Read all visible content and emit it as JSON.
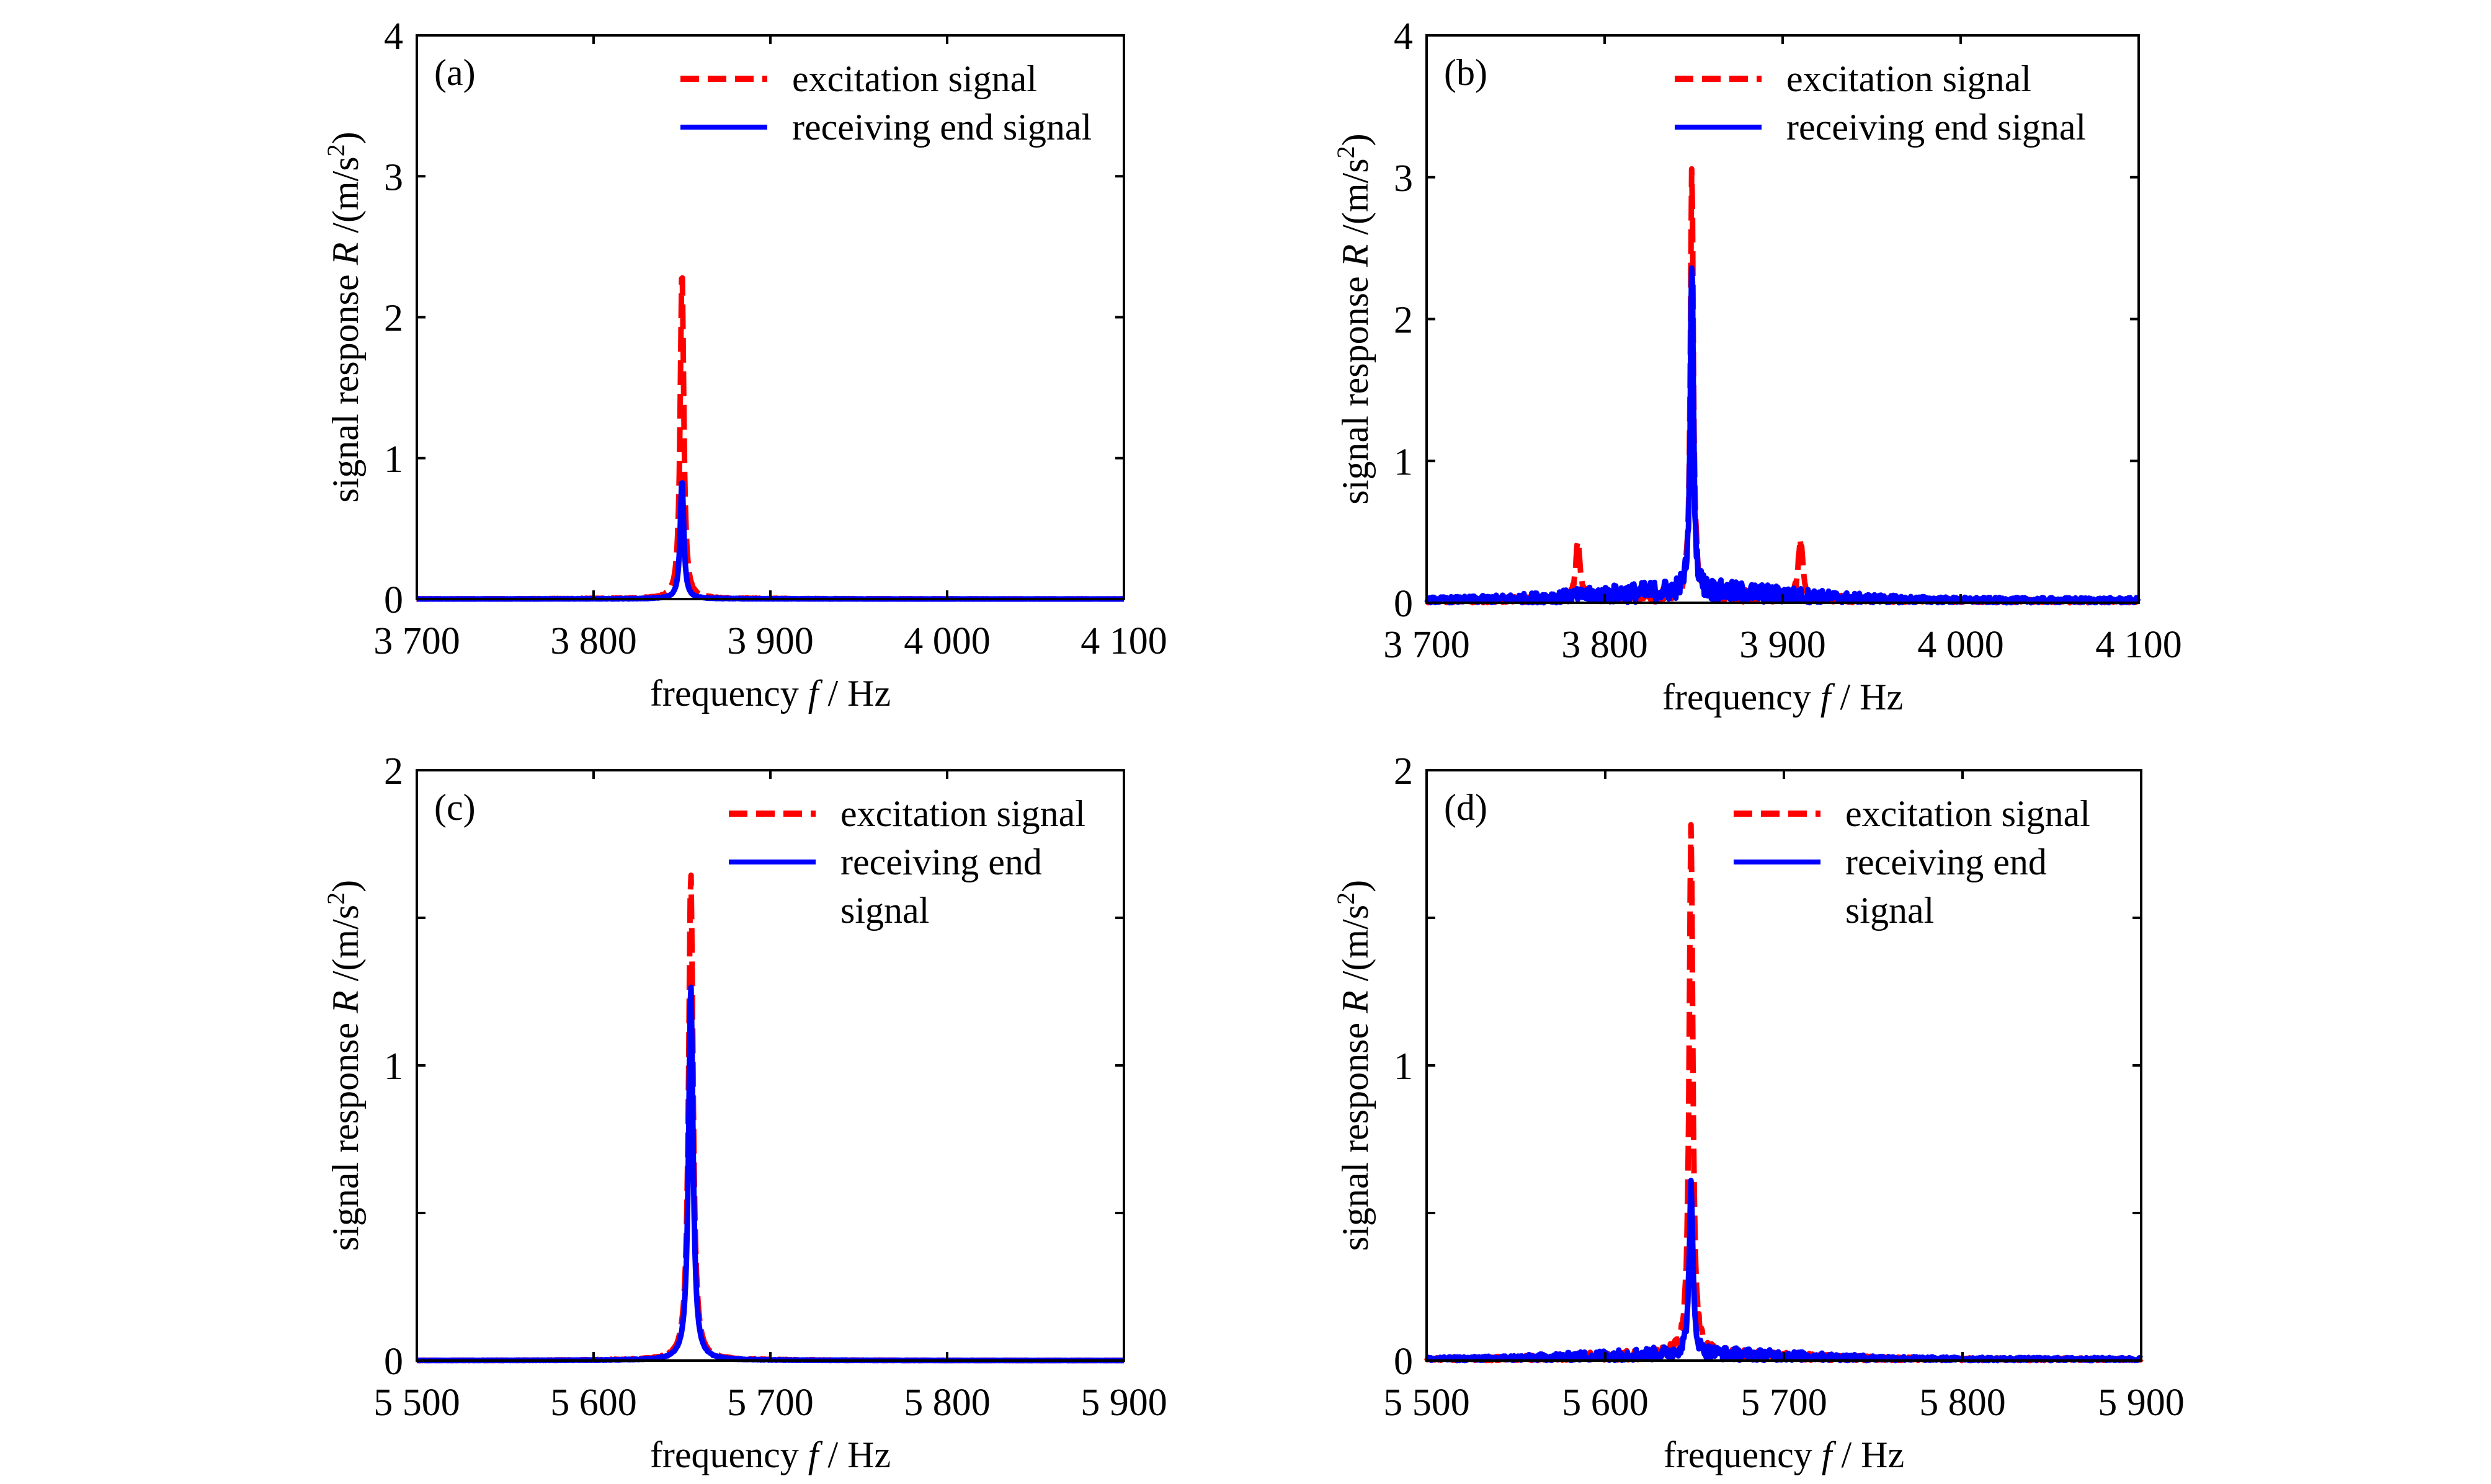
{
  "chart_data": [
    {
      "type": "line",
      "panel": "(a)",
      "xlabel_prefix": "frequency ",
      "xlabel_var": "f",
      "xlabel_suffix": " / Hz",
      "ylabel_prefix": "signal response ",
      "ylabel_var": "R",
      "ylabel_suffix": " /(m/s",
      "ylabel_sup": "2",
      "ylabel_close": ")",
      "xlim": [
        3700,
        4100
      ],
      "ylim": [
        0,
        4
      ],
      "xticks": [
        3700,
        3800,
        3900,
        4000,
        4100
      ],
      "xtick_labels": [
        "3 700",
        "3 800",
        "3 900",
        "4 000",
        "4 100"
      ],
      "yticks": [
        0,
        1,
        2,
        3,
        4
      ],
      "ytick_labels": [
        "0",
        "1",
        "2",
        "3",
        "4"
      ],
      "legend_position": "top-right",
      "legend": [
        "excitation signal",
        "receiving end signal"
      ],
      "series": [
        {
          "name": "excitation signal",
          "color": "#ff0000",
          "style": "dashed",
          "peak_x": 3850,
          "peak_y": 2.35,
          "width": 1.2,
          "noise": 0.005,
          "sidebands": []
        },
        {
          "name": "receiving end signal",
          "color": "#0000ff",
          "style": "solid",
          "peak_x": 3850,
          "peak_y": 0.85,
          "width": 1.2,
          "noise": 0.003,
          "sidebands": []
        }
      ]
    },
    {
      "type": "line",
      "panel": "(b)",
      "xlabel_prefix": "frequency ",
      "xlabel_var": "f",
      "xlabel_suffix": " / Hz",
      "ylabel_prefix": "signal response ",
      "ylabel_var": "R",
      "ylabel_suffix": " /(m/s",
      "ylabel_sup": "2",
      "ylabel_close": ")",
      "xlim": [
        3700,
        4100
      ],
      "ylim": [
        0,
        4
      ],
      "xticks": [
        3700,
        3800,
        3900,
        4000,
        4100
      ],
      "xtick_labels": [
        "3 700",
        "3 800",
        "3 900",
        "4 000",
        "4 100"
      ],
      "yticks": [
        0,
        1,
        2,
        3,
        4
      ],
      "ytick_labels": [
        "0",
        "1",
        "2",
        "3",
        "4"
      ],
      "legend_position": "top-right",
      "legend": [
        "excitation signal",
        "receiving end signal"
      ],
      "series": [
        {
          "name": "excitation signal",
          "color": "#ff0000",
          "style": "dashed",
          "peak_x": 3849,
          "peak_y": 3.0,
          "width": 1.0,
          "noise": 0.08,
          "sidebands": [
            [
              3785,
              0.4
            ],
            [
              3910,
              0.4
            ]
          ]
        },
        {
          "name": "receiving end signal",
          "color": "#0000ff",
          "style": "solid",
          "peak_x": 3849,
          "peak_y": 2.38,
          "width": 1.0,
          "noise": 0.12,
          "sidebands": []
        }
      ]
    },
    {
      "type": "line",
      "panel": "(c)",
      "xlabel_prefix": "frequency ",
      "xlabel_var": "f",
      "xlabel_suffix": " / Hz",
      "ylabel_prefix": "signal response ",
      "ylabel_var": "R",
      "ylabel_suffix": " /(m/s",
      "ylabel_sup": "2",
      "ylabel_close": ")",
      "xlim": [
        5500,
        5900
      ],
      "ylim": [
        0,
        2
      ],
      "xticks": [
        5500,
        5600,
        5700,
        5800,
        5900
      ],
      "xtick_labels": [
        "5 500",
        "5 600",
        "5 700",
        "5 800",
        "5 900"
      ],
      "yticks": [
        0,
        0.5,
        1,
        1.5,
        2
      ],
      "ytick_labels": [
        "0",
        "",
        "1",
        "",
        "2"
      ],
      "legend_position": "top-right",
      "legend": [
        "excitation signal",
        "receiving end",
        "signal"
      ],
      "series": [
        {
          "name": "excitation signal",
          "color": "#ff0000",
          "style": "dashed",
          "peak_x": 5655,
          "peak_y": 1.65,
          "width": 1.5,
          "noise": 0.003,
          "sidebands": []
        },
        {
          "name": "receiving end signal",
          "color": "#0000ff",
          "style": "solid",
          "peak_x": 5655,
          "peak_y": 1.27,
          "width": 1.5,
          "noise": 0.002,
          "sidebands": []
        }
      ]
    },
    {
      "type": "line",
      "panel": "(d)",
      "xlabel_prefix": "frequency ",
      "xlabel_var": "f",
      "xlabel_suffix": " / Hz",
      "ylabel_prefix": "signal response ",
      "ylabel_var": "R",
      "ylabel_suffix": " /(m/s",
      "ylabel_sup": "2",
      "ylabel_close": ")",
      "xlim": [
        5500,
        5900
      ],
      "ylim": [
        0,
        2
      ],
      "xticks": [
        5500,
        5600,
        5700,
        5800,
        5900
      ],
      "xtick_labels": [
        "5 500",
        "5 600",
        "5 700",
        "5 800",
        "5 900"
      ],
      "yticks": [
        0,
        0.5,
        1,
        1.5,
        2
      ],
      "ytick_labels": [
        "0",
        "",
        "1",
        "",
        "2"
      ],
      "legend_position": "top-right",
      "legend": [
        "excitation signal",
        "receiving end",
        "signal"
      ],
      "series": [
        {
          "name": "excitation signal",
          "color": "#ff0000",
          "style": "dashed",
          "peak_x": 5648,
          "peak_y": 1.8,
          "width": 1.2,
          "noise": 0.03,
          "sidebands": []
        },
        {
          "name": "receiving end signal",
          "color": "#0000ff",
          "style": "solid",
          "peak_x": 5648,
          "peak_y": 0.57,
          "width": 1.2,
          "noise": 0.035,
          "sidebands": []
        }
      ]
    }
  ]
}
